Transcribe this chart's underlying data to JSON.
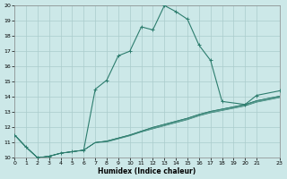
{
  "title": "",
  "xlabel": "Humidex (Indice chaleur)",
  "ylabel": "",
  "xlim": [
    0,
    23
  ],
  "ylim": [
    10,
    20
  ],
  "yticks": [
    10,
    11,
    12,
    13,
    14,
    15,
    16,
    17,
    18,
    19,
    20
  ],
  "xticks": [
    0,
    1,
    2,
    3,
    4,
    5,
    6,
    7,
    8,
    9,
    10,
    11,
    12,
    13,
    14,
    15,
    16,
    17,
    18,
    19,
    20,
    21,
    23
  ],
  "bg_color": "#cce8e8",
  "line_color": "#2d7d6e",
  "grid_color": "#aacccc",
  "main_series_x": [
    0,
    1,
    2,
    3,
    4,
    5,
    6,
    7,
    8,
    9,
    10,
    11,
    12,
    13,
    14,
    15,
    16,
    17,
    18,
    20,
    21,
    23
  ],
  "main_series_y": [
    11.5,
    10.7,
    10.0,
    10.1,
    10.3,
    10.4,
    10.5,
    14.5,
    15.1,
    16.7,
    17.0,
    18.6,
    18.4,
    20.0,
    19.6,
    19.1,
    17.4,
    16.4,
    13.7,
    13.5,
    14.1,
    14.4
  ],
  "diag_lines": [
    {
      "x": [
        0,
        1,
        2,
        3,
        4,
        5,
        6,
        7,
        8,
        9,
        10,
        11,
        12,
        13,
        14,
        15,
        16,
        17,
        18,
        20,
        21,
        23
      ],
      "y": [
        11.5,
        10.7,
        10.0,
        10.1,
        10.3,
        10.4,
        10.5,
        11.0,
        11.1,
        11.3,
        11.5,
        11.75,
        12.0,
        12.2,
        12.4,
        12.6,
        12.85,
        13.05,
        13.2,
        13.5,
        13.75,
        14.05
      ]
    },
    {
      "x": [
        0,
        1,
        2,
        3,
        4,
        5,
        6,
        7,
        8,
        9,
        10,
        11,
        12,
        13,
        14,
        15,
        16,
        17,
        18,
        20,
        21,
        23
      ],
      "y": [
        11.5,
        10.7,
        10.0,
        10.1,
        10.3,
        10.4,
        10.5,
        11.0,
        11.1,
        11.3,
        11.5,
        11.75,
        12.0,
        12.2,
        12.4,
        12.6,
        12.85,
        13.05,
        13.2,
        13.5,
        13.75,
        14.05
      ]
    },
    {
      "x": [
        0,
        1,
        2,
        3,
        4,
        5,
        6,
        7,
        8,
        9,
        10,
        11,
        12,
        13,
        14,
        15,
        16,
        17,
        18,
        20,
        21,
        23
      ],
      "y": [
        11.5,
        10.7,
        10.0,
        10.1,
        10.3,
        10.4,
        10.5,
        11.0,
        11.08,
        11.28,
        11.48,
        11.73,
        11.95,
        12.15,
        12.35,
        12.55,
        12.8,
        13.0,
        13.15,
        13.45,
        13.7,
        14.0
      ]
    },
    {
      "x": [
        0,
        1,
        2,
        3,
        4,
        5,
        6,
        7,
        8,
        9,
        10,
        11,
        12,
        13,
        14,
        15,
        16,
        17,
        18,
        20,
        21,
        23
      ],
      "y": [
        11.5,
        10.7,
        10.0,
        10.1,
        10.3,
        10.4,
        10.5,
        11.0,
        11.04,
        11.24,
        11.44,
        11.69,
        11.9,
        12.1,
        12.3,
        12.5,
        12.75,
        12.95,
        13.1,
        13.4,
        13.65,
        13.95
      ]
    }
  ]
}
